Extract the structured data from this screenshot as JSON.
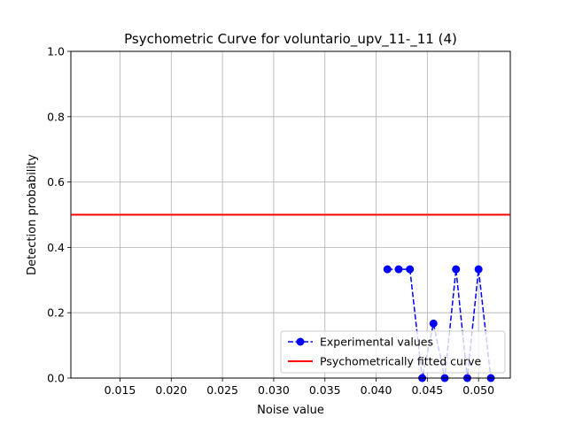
{
  "chart_data": {
    "type": "line",
    "title": "Psychometric Curve for voluntario_upv_11-_11 (4)",
    "xlabel": "Noise value",
    "ylabel": "Detection probability",
    "xlim": [
      0.0102,
      0.0531
    ],
    "ylim": [
      0.0,
      1.0
    ],
    "xticks": [
      0.015,
      0.02,
      0.025,
      0.03,
      0.035,
      0.04,
      0.045,
      0.05
    ],
    "xtick_labels": [
      "0.015",
      "0.020",
      "0.025",
      "0.030",
      "0.035",
      "0.040",
      "0.045",
      "0.050"
    ],
    "yticks": [
      0.0,
      0.2,
      0.4,
      0.6,
      0.8,
      1.0
    ],
    "ytick_labels": [
      "0.0",
      "0.2",
      "0.4",
      "0.6",
      "0.8",
      "1.0"
    ],
    "grid": true,
    "legend_position": "lower-right",
    "series": [
      {
        "name": "Experimental values",
        "style": "dashed-line-with-circle-markers",
        "color": "#0000ff",
        "x": [
          0.0411,
          0.0422,
          0.0433,
          0.0445,
          0.0456,
          0.0467,
          0.0478,
          0.0489,
          0.05,
          0.0512
        ],
        "y": [
          0.333,
          0.333,
          0.333,
          0.0,
          0.167,
          0.0,
          0.333,
          0.0,
          0.333,
          0.0
        ]
      },
      {
        "name": "Psychometrically fitted curve",
        "style": "solid-line",
        "color": "#ff0000",
        "x": [
          0.0102,
          0.0531
        ],
        "y": [
          0.5,
          0.5
        ]
      }
    ]
  }
}
